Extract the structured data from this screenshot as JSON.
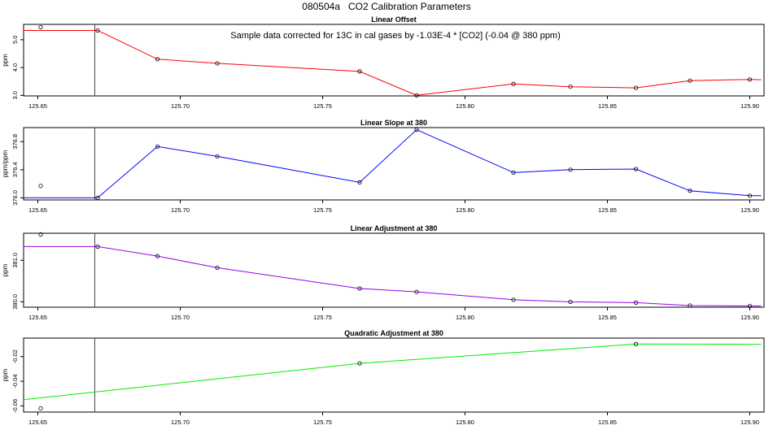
{
  "title": "080504a   CO2 Calibration Parameters",
  "chart_data": [
    {
      "type": "line",
      "title": "Linear Offset",
      "ylabel": "ppm",
      "annotation": "Sample data corrected for 13C in cal gases by -1.03E-4 * [CO2] (-0.04 @ 380 ppm)",
      "color": "#ff0000",
      "xlim": [
        125.645,
        125.905
      ],
      "ylim": [
        2.98,
        5.55
      ],
      "xticks": [
        "125.65",
        "125.70",
        "125.75",
        "125.80",
        "125.85",
        "125.90"
      ],
      "yticks": [
        "3.0",
        "4.0",
        "5.0"
      ],
      "marker_line_x": 125.67,
      "outlier": {
        "x": 125.651,
        "y": 5.45
      },
      "line_start": {
        "x": 125.645,
        "y": 5.33
      },
      "line_end": {
        "x": 125.904,
        "y": 3.56
      },
      "x": [
        125.671,
        125.692,
        125.713,
        125.763,
        125.783,
        125.817,
        125.837,
        125.86,
        125.879,
        125.9
      ],
      "y": [
        5.33,
        4.3,
        4.15,
        3.86,
        3.0,
        3.41,
        3.31,
        3.27,
        3.53,
        3.57
      ]
    },
    {
      "type": "line",
      "title": "Linear Slope at 380",
      "ylabel": "ppm/ppm",
      "color": "#0000ff",
      "xlim": [
        125.645,
        125.905
      ],
      "ylim": [
        375.97,
        377.0
      ],
      "xticks": [
        "125.65",
        "125.70",
        "125.75",
        "125.80",
        "125.85",
        "125.90"
      ],
      "yticks": [
        "376.0",
        "376.4",
        "376.8"
      ],
      "marker_line_x": 125.67,
      "outlier": {
        "x": 125.651,
        "y": 376.17
      },
      "line_start": {
        "x": 125.645,
        "y": 376.0
      },
      "line_end": {
        "x": 125.904,
        "y": 376.03
      },
      "x": [
        125.671,
        125.692,
        125.713,
        125.763,
        125.783,
        125.817,
        125.837,
        125.86,
        125.879,
        125.9
      ],
      "y": [
        376.0,
        376.73,
        376.59,
        376.22,
        376.97,
        376.36,
        376.4,
        376.41,
        376.1,
        376.03
      ]
    },
    {
      "type": "line",
      "title": "Linear Adjustment at 380",
      "ylabel": "ppm",
      "color": "#9900ee",
      "xlim": [
        125.645,
        125.905
      ],
      "ylim": [
        379.87,
        381.65
      ],
      "xticks": [
        "125.65",
        "125.70",
        "125.75",
        "125.80",
        "125.85",
        "125.90"
      ],
      "yticks": [
        "380.0",
        "381.0"
      ],
      "marker_line_x": 125.67,
      "outlier": {
        "x": 125.651,
        "y": 381.62
      },
      "line_start": {
        "x": 125.645,
        "y": 381.33
      },
      "line_end": {
        "x": 125.904,
        "y": 379.9
      },
      "x": [
        125.671,
        125.692,
        125.713,
        125.763,
        125.783,
        125.817,
        125.837,
        125.86,
        125.879,
        125.9
      ],
      "y": [
        381.33,
        381.1,
        380.82,
        380.32,
        380.24,
        380.05,
        380.0,
        379.98,
        379.91,
        379.9
      ]
    },
    {
      "type": "line",
      "title": "Quadratic Adjustment at 380",
      "ylabel": "ppm",
      "color": "#00ee00",
      "xlim": [
        125.645,
        125.905
      ],
      "ylim": [
        -0.065,
        -0.005
      ],
      "xticks": [
        "125.65",
        "125.70",
        "125.75",
        "125.80",
        "125.85",
        "125.90"
      ],
      "yticks": [
        "-0.06",
        "-0.04",
        "-0.02"
      ],
      "marker_line_x": 125.67,
      "outlier": {
        "x": 125.651,
        "y": -0.062
      },
      "line_start": {
        "x": 125.645,
        "y": -0.055
      },
      "line_end": {
        "x": 125.904,
        "y": -0.01
      },
      "x": [
        125.763,
        125.86
      ],
      "y": [
        -0.0255,
        -0.0098
      ]
    }
  ]
}
